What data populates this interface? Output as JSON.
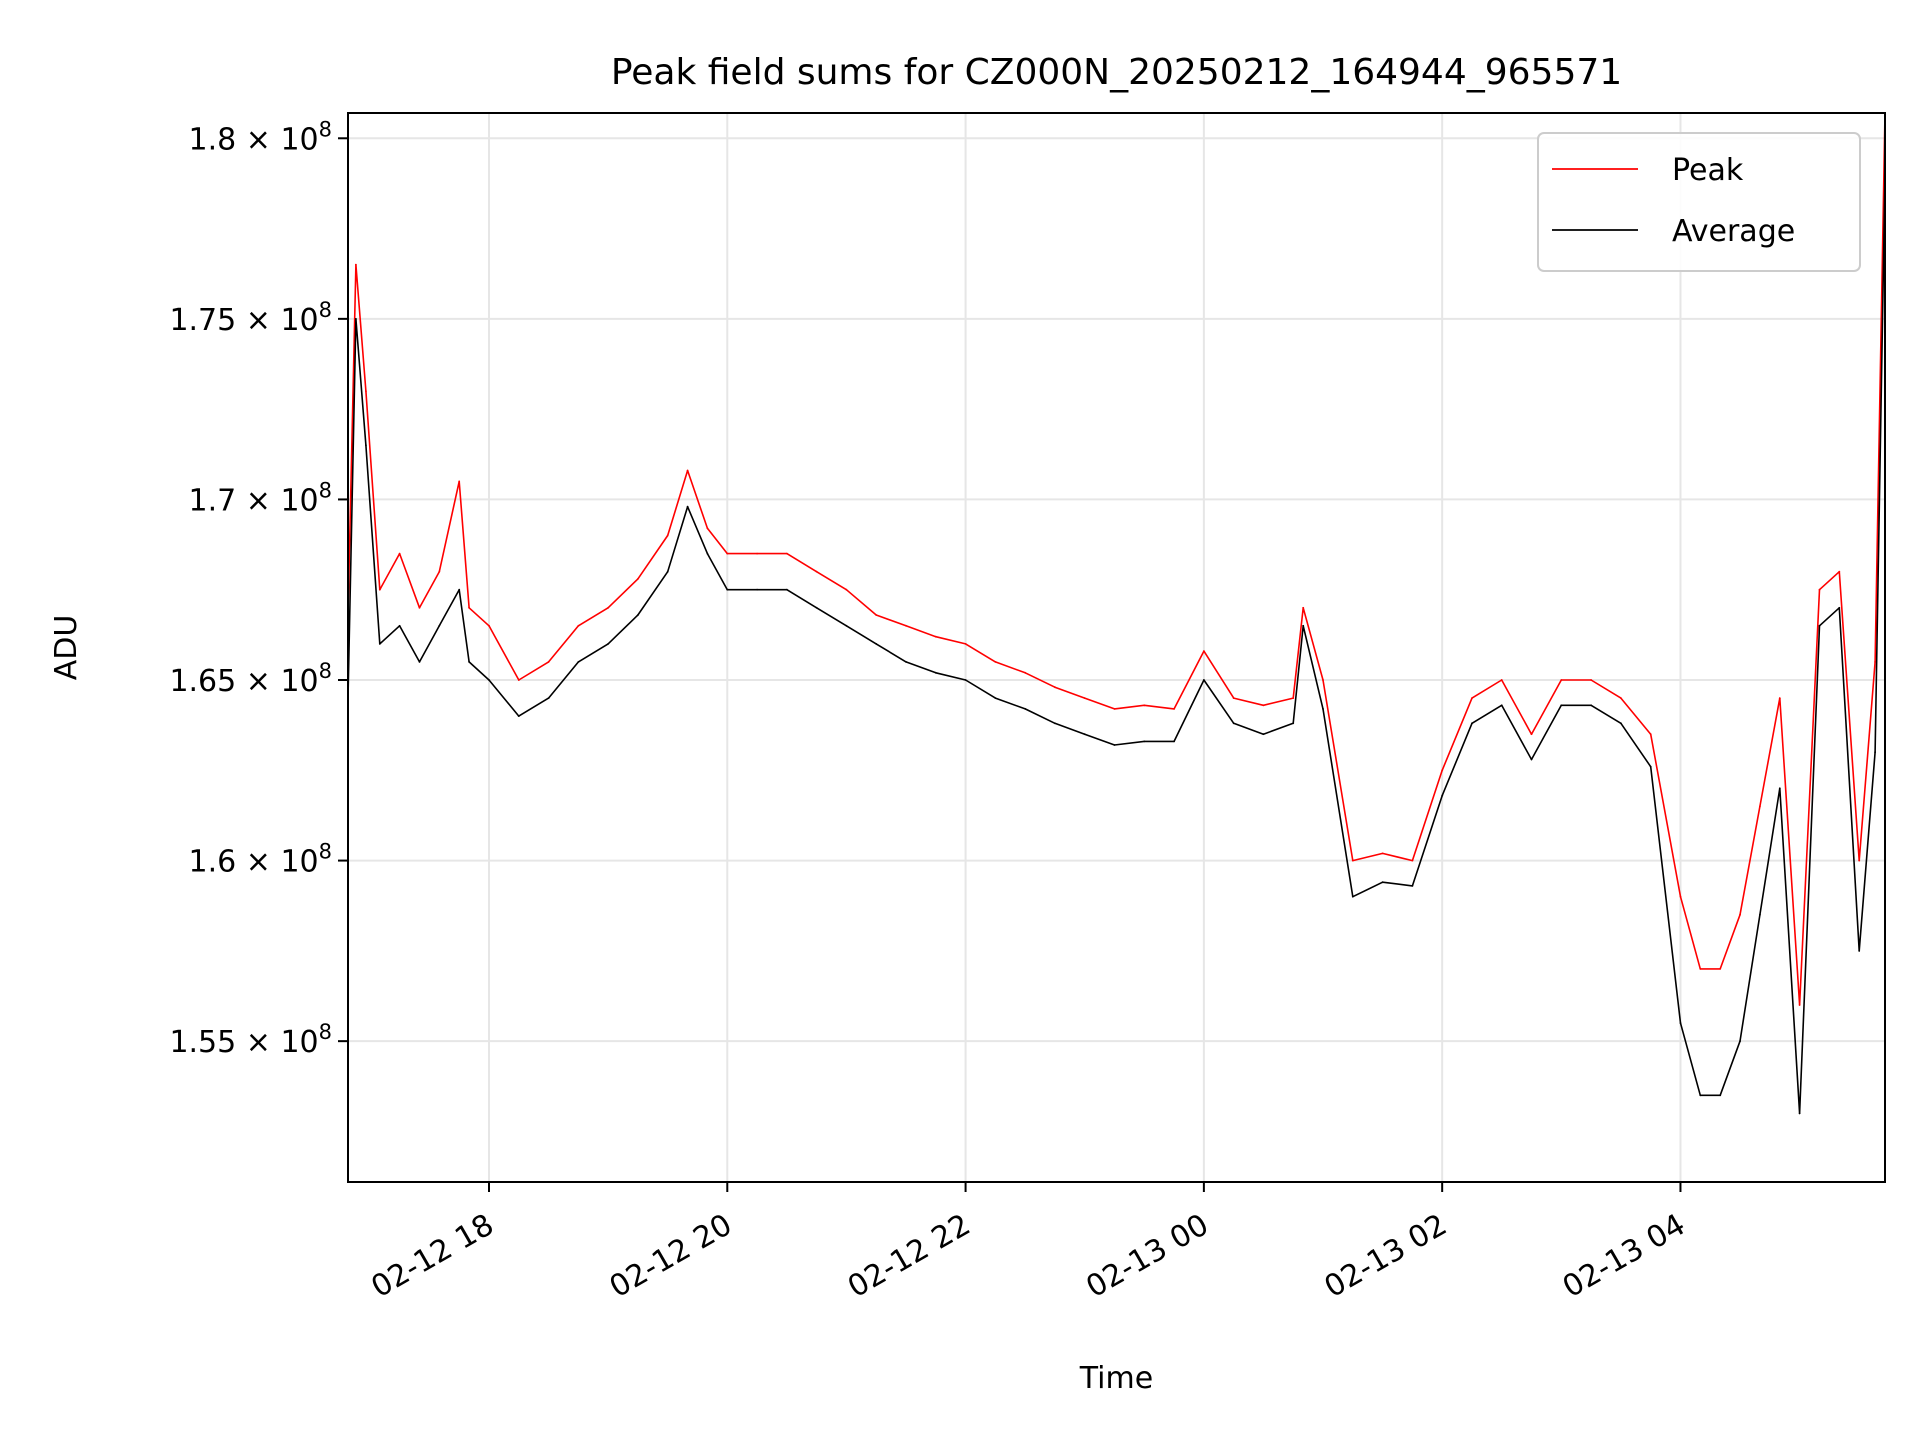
{
  "chart_data": {
    "type": "line",
    "title": "Peak field sums for CZ000N_20250212_164944_965571",
    "xlabel": "Time",
    "ylabel": "ADU",
    "x_type": "time",
    "xlim": [
      "2025-02-12 16:49",
      "2025-02-13 05:43"
    ],
    "ylim": [
      151100000,
      180700000
    ],
    "grid": true,
    "legend_position": "upper right",
    "x_ticks": [
      {
        "value": "2025-02-12 18:00",
        "label": "02-12 18"
      },
      {
        "value": "2025-02-12 20:00",
        "label": "02-12 20"
      },
      {
        "value": "2025-02-12 22:00",
        "label": "02-12 22"
      },
      {
        "value": "2025-02-13 00:00",
        "label": "02-13 00"
      },
      {
        "value": "2025-02-13 02:00",
        "label": "02-13 02"
      },
      {
        "value": "2025-02-13 04:00",
        "label": "02-13 04"
      }
    ],
    "y_ticks": [
      {
        "value": 155000000,
        "label": "1.55 × 10",
        "exp": "8"
      },
      {
        "value": 160000000,
        "label": "1.6 × 10",
        "exp": "8"
      },
      {
        "value": 165000000,
        "label": "1.65 × 10",
        "exp": "8"
      },
      {
        "value": 170000000,
        "label": "1.7 × 10",
        "exp": "8"
      },
      {
        "value": 175000000,
        "label": "1.75 × 10",
        "exp": "8"
      },
      {
        "value": 180000000,
        "label": "1.8 × 10",
        "exp": "8"
      }
    ],
    "series": [
      {
        "name": "Peak",
        "color": "#ff0000",
        "x": [
          "2025-02-12 16:49",
          "2025-02-12 16:53",
          "2025-02-12 16:58",
          "2025-02-12 17:05",
          "2025-02-12 17:15",
          "2025-02-12 17:25",
          "2025-02-12 17:35",
          "2025-02-12 17:45",
          "2025-02-12 17:50",
          "2025-02-12 18:00",
          "2025-02-12 18:15",
          "2025-02-12 18:30",
          "2025-02-12 18:45",
          "2025-02-12 19:00",
          "2025-02-12 19:15",
          "2025-02-12 19:30",
          "2025-02-12 19:40",
          "2025-02-12 19:50",
          "2025-02-12 20:00",
          "2025-02-12 20:15",
          "2025-02-12 20:30",
          "2025-02-12 20:45",
          "2025-02-12 21:00",
          "2025-02-12 21:15",
          "2025-02-12 21:30",
          "2025-02-12 21:45",
          "2025-02-12 22:00",
          "2025-02-12 22:15",
          "2025-02-12 22:30",
          "2025-02-12 22:45",
          "2025-02-12 23:00",
          "2025-02-12 23:15",
          "2025-02-12 23:30",
          "2025-02-12 23:45",
          "2025-02-13 00:00",
          "2025-02-13 00:15",
          "2025-02-13 00:30",
          "2025-02-13 00:45",
          "2025-02-13 00:50",
          "2025-02-13 01:00",
          "2025-02-13 01:15",
          "2025-02-13 01:30",
          "2025-02-13 01:45",
          "2025-02-13 02:00",
          "2025-02-13 02:15",
          "2025-02-13 02:30",
          "2025-02-13 02:45",
          "2025-02-13 03:00",
          "2025-02-13 03:15",
          "2025-02-13 03:30",
          "2025-02-13 03:45",
          "2025-02-13 04:00",
          "2025-02-13 04:10",
          "2025-02-13 04:20",
          "2025-02-13 04:30",
          "2025-02-13 04:40",
          "2025-02-13 04:50",
          "2025-02-13 05:00",
          "2025-02-13 05:10",
          "2025-02-13 05:20",
          "2025-02-13 05:30",
          "2025-02-13 05:38",
          "2025-02-13 05:43"
        ],
        "y": [
          166800000,
          176500000,
          173000000,
          167500000,
          168500000,
          167000000,
          168000000,
          170500000,
          167000000,
          166500000,
          165000000,
          165500000,
          166500000,
          167000000,
          167800000,
          169000000,
          170800000,
          169200000,
          168500000,
          168500000,
          168500000,
          168000000,
          167500000,
          166800000,
          166500000,
          166200000,
          166000000,
          165500000,
          165200000,
          164800000,
          164500000,
          164200000,
          164300000,
          164200000,
          165800000,
          164500000,
          164300000,
          164500000,
          167000000,
          165000000,
          160000000,
          160200000,
          160000000,
          162500000,
          164500000,
          165000000,
          163500000,
          165000000,
          165000000,
          164500000,
          163500000,
          159000000,
          157000000,
          157000000,
          158500000,
          161500000,
          164500000,
          156000000,
          167500000,
          168000000,
          160000000,
          165500000,
          180700000
        ]
      },
      {
        "name": "Average",
        "color": "#000000",
        "x": [
          "2025-02-12 16:49",
          "2025-02-12 16:53",
          "2025-02-12 16:58",
          "2025-02-12 17:05",
          "2025-02-12 17:15",
          "2025-02-12 17:25",
          "2025-02-12 17:35",
          "2025-02-12 17:45",
          "2025-02-12 17:50",
          "2025-02-12 18:00",
          "2025-02-12 18:15",
          "2025-02-12 18:30",
          "2025-02-12 18:45",
          "2025-02-12 19:00",
          "2025-02-12 19:15",
          "2025-02-12 19:30",
          "2025-02-12 19:40",
          "2025-02-12 19:50",
          "2025-02-12 20:00",
          "2025-02-12 20:15",
          "2025-02-12 20:30",
          "2025-02-12 20:45",
          "2025-02-12 21:00",
          "2025-02-12 21:15",
          "2025-02-12 21:30",
          "2025-02-12 21:45",
          "2025-02-12 22:00",
          "2025-02-12 22:15",
          "2025-02-12 22:30",
          "2025-02-12 22:45",
          "2025-02-12 23:00",
          "2025-02-12 23:15",
          "2025-02-12 23:30",
          "2025-02-12 23:45",
          "2025-02-13 00:00",
          "2025-02-13 00:15",
          "2025-02-13 00:30",
          "2025-02-13 00:45",
          "2025-02-13 00:50",
          "2025-02-13 01:00",
          "2025-02-13 01:15",
          "2025-02-13 01:30",
          "2025-02-13 01:45",
          "2025-02-13 02:00",
          "2025-02-13 02:15",
          "2025-02-13 02:30",
          "2025-02-13 02:45",
          "2025-02-13 03:00",
          "2025-02-13 03:15",
          "2025-02-13 03:30",
          "2025-02-13 03:45",
          "2025-02-13 04:00",
          "2025-02-13 04:10",
          "2025-02-13 04:20",
          "2025-02-13 04:30",
          "2025-02-13 04:40",
          "2025-02-13 04:50",
          "2025-02-13 05:00",
          "2025-02-13 05:10",
          "2025-02-13 05:20",
          "2025-02-13 05:30",
          "2025-02-13 05:38",
          "2025-02-13 05:43"
        ],
        "y": [
          164500000,
          175000000,
          171500000,
          166000000,
          166500000,
          165500000,
          166500000,
          167500000,
          165500000,
          165000000,
          164000000,
          164500000,
          165500000,
          166000000,
          166800000,
          168000000,
          169800000,
          168500000,
          167500000,
          167500000,
          167500000,
          167000000,
          166500000,
          166000000,
          165500000,
          165200000,
          165000000,
          164500000,
          164200000,
          163800000,
          163500000,
          163200000,
          163300000,
          163300000,
          165000000,
          163800000,
          163500000,
          163800000,
          166500000,
          164200000,
          159000000,
          159400000,
          159300000,
          161800000,
          163800000,
          164300000,
          162800000,
          164300000,
          164300000,
          163800000,
          162600000,
          155500000,
          153500000,
          153500000,
          155000000,
          158500000,
          162000000,
          153000000,
          166500000,
          167000000,
          157500000,
          163000000,
          179000000
        ]
      }
    ]
  }
}
